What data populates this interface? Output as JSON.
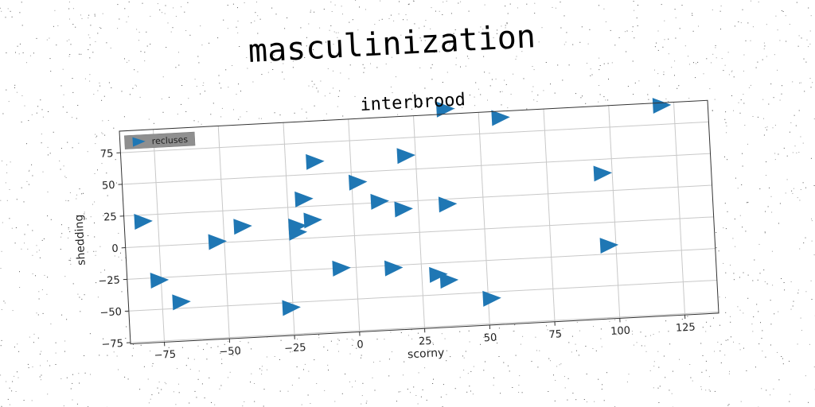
{
  "figure": {
    "suptitle": "masculinization"
  },
  "chart_data": {
    "type": "scatter",
    "title": "interbrood",
    "xlabel": "scorny",
    "ylabel": "shedding",
    "xlim": [
      -88,
      138
    ],
    "ylim": [
      -76,
      92
    ],
    "xticks": [
      -75,
      -50,
      -25,
      0,
      25,
      50,
      75,
      100,
      125
    ],
    "yticks": [
      -75,
      -50,
      -25,
      0,
      25,
      50,
      75
    ],
    "xtick_labels": [
      "−75",
      "−50",
      "−25",
      "0",
      "25",
      "50",
      "75",
      "100",
      "125"
    ],
    "ytick_labels": [
      "−75",
      "−50",
      "−25",
      "0",
      "25",
      "50",
      "75"
    ],
    "grid": true,
    "legend_position": "top-left",
    "marker": "triangle-right",
    "series": [
      {
        "name": "recluses",
        "color": "#1f77b4",
        "points": [
          {
            "x": -81,
            "y": 20
          },
          {
            "x": -76,
            "y": -27
          },
          {
            "x": -68,
            "y": -45
          },
          {
            "x": -53,
            "y": 1
          },
          {
            "x": -43,
            "y": 12
          },
          {
            "x": -26,
            "y": -54
          },
          {
            "x": -22,
            "y": 5
          },
          {
            "x": -22,
            "y": 10
          },
          {
            "x": -19,
            "y": 31
          },
          {
            "x": -16,
            "y": 14
          },
          {
            "x": -14,
            "y": 60
          },
          {
            "x": -6,
            "y": -25
          },
          {
            "x": 2,
            "y": 42
          },
          {
            "x": 10,
            "y": 26
          },
          {
            "x": 14,
            "y": -27
          },
          {
            "x": 19,
            "y": 19
          },
          {
            "x": 21,
            "y": 61
          },
          {
            "x": 31,
            "y": -34
          },
          {
            "x": 35,
            "y": -39
          },
          {
            "x": 36,
            "y": 21
          },
          {
            "x": 37,
            "y": 96
          },
          {
            "x": 51,
            "y": -55
          },
          {
            "x": 58,
            "y": 87
          },
          {
            "x": 96,
            "y": 39
          },
          {
            "x": 97,
            "y": -18
          },
          {
            "x": 120,
            "y": 90
          }
        ]
      }
    ]
  }
}
